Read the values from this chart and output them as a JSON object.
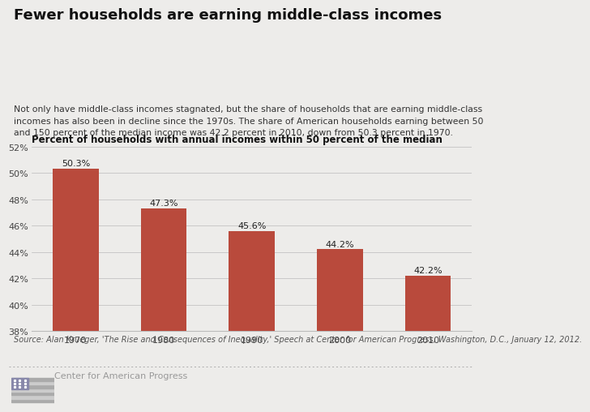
{
  "title": "Fewer households are earning middle-class incomes",
  "subtitle": "Not only have middle-class incomes stagnated, but the share of households that are earning middle-class\nincomes has also been in decline since the 1970s. The share of American households earning between 50\nand 150 percent of the median income was 42.2 percent in 2010, down from 50.3 percent in 1970.",
  "chart_label": "Percent of households with annual incomes within 50 percent of the median",
  "categories": [
    "1970",
    "1980",
    "1990",
    "2000",
    "2010"
  ],
  "values": [
    50.3,
    47.3,
    45.6,
    44.2,
    42.2
  ],
  "bar_labels": [
    "50.3%",
    "47.3%",
    "45.6%",
    "44.2%",
    "42.2%"
  ],
  "bar_color": "#b94a3c",
  "background_color": "#edecea",
  "ylim_min": 38,
  "ylim_max": 52,
  "yticks": [
    38,
    40,
    42,
    44,
    46,
    48,
    50,
    52
  ],
  "ytick_labels": [
    "38%",
    "40%",
    "42%",
    "44%",
    "46%",
    "48%",
    "50%",
    "52%"
  ],
  "source_text": "Source: Alan Krueger, 'The Rise and Consequences of Inequality,' Speech at Center for American Progress, Washington, D.C., January 12, 2012.",
  "footer_text": "Center for American Progress",
  "title_fontsize": 13,
  "subtitle_fontsize": 7.8,
  "bar_label_fontsize": 8,
  "chart_label_fontsize": 8.5,
  "axis_fontsize": 8,
  "source_fontsize": 7,
  "footer_fontsize": 8
}
